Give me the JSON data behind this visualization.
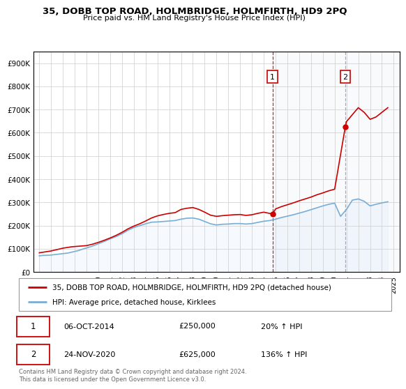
{
  "title": "35, DOBB TOP ROAD, HOLMBRIDGE, HOLMFIRTH, HD9 2PQ",
  "subtitle": "Price paid vs. HM Land Registry's House Price Index (HPI)",
  "hpi_label": "HPI: Average price, detached house, Kirklees",
  "property_label": "35, DOBB TOP ROAD, HOLMBRIDGE, HOLMFIRTH, HD9 2PQ (detached house)",
  "footnote": "Contains HM Land Registry data © Crown copyright and database right 2024.\nThis data is licensed under the Open Government Licence v3.0.",
  "transaction1": {
    "date": "06-OCT-2014",
    "price": "£250,000",
    "hpi_change": "20% ↑ HPI",
    "label": "1"
  },
  "transaction2": {
    "date": "24-NOV-2020",
    "price": "£625,000",
    "hpi_change": "136% ↑ HPI",
    "label": "2"
  },
  "hpi_color": "#7aadd4",
  "hpi_fill_color": "#ddeeff",
  "property_color": "#cc0000",
  "dashed_color": "#cc0000",
  "dashed2_color": "#aaaacc",
  "marker1_x": 2014.75,
  "marker1_y": 250000,
  "marker2_x": 2020.9,
  "marker2_y": 625000,
  "ylim": [
    0,
    950000
  ],
  "xlim": [
    1994.5,
    2025.5
  ],
  "yticks": [
    0,
    100000,
    200000,
    300000,
    400000,
    500000,
    600000,
    700000,
    800000,
    900000
  ],
  "ytick_labels": [
    "£0",
    "£100K",
    "£200K",
    "£300K",
    "£400K",
    "£500K",
    "£600K",
    "£700K",
    "£800K",
    "£900K"
  ],
  "xticks": [
    1995,
    1996,
    1997,
    1998,
    1999,
    2000,
    2001,
    2002,
    2003,
    2004,
    2005,
    2006,
    2007,
    2008,
    2009,
    2010,
    2011,
    2012,
    2013,
    2014,
    2015,
    2016,
    2017,
    2018,
    2019,
    2020,
    2021,
    2022,
    2023,
    2024,
    2025
  ],
  "hpi_years": [
    1995.0,
    1995.083,
    1995.167,
    1995.25,
    1995.333,
    1995.417,
    1995.5,
    1995.583,
    1995.667,
    1995.75,
    1995.833,
    1995.917,
    1996.0,
    1996.083,
    1996.167,
    1996.25,
    1996.333,
    1996.417,
    1996.5,
    1996.583,
    1996.667,
    1996.75,
    1996.833,
    1996.917,
    1997.0,
    1997.083,
    1997.167,
    1997.25,
    1997.333,
    1997.417,
    1997.5,
    1997.583,
    1997.667,
    1997.75,
    1997.833,
    1997.917,
    1998.0,
    1998.083,
    1998.167,
    1998.25,
    1998.333,
    1998.417,
    1998.5,
    1998.583,
    1998.667,
    1998.75,
    1998.833,
    1998.917,
    1999.0,
    1999.5,
    2000.0,
    2000.5,
    2001.0,
    2001.5,
    2002.0,
    2002.5,
    2003.0,
    2003.5,
    2004.0,
    2004.5,
    2005.0,
    2005.5,
    2006.0,
    2006.5,
    2007.0,
    2007.5,
    2008.0,
    2008.5,
    2009.0,
    2009.5,
    2010.0,
    2010.5,
    2011.0,
    2011.5,
    2012.0,
    2012.5,
    2013.0,
    2013.5,
    2014.0,
    2014.5,
    2015.0,
    2015.5,
    2016.0,
    2016.5,
    2017.0,
    2017.5,
    2018.0,
    2018.5,
    2019.0,
    2019.5,
    2020.0,
    2020.5,
    2021.0,
    2021.5,
    2022.0,
    2022.5,
    2023.0,
    2023.5,
    2024.0,
    2024.5
  ],
  "hpi_values": [
    70000,
    70500,
    71000,
    71500,
    71800,
    72000,
    72200,
    72400,
    72500,
    72600,
    72800,
    73000,
    73500,
    74000,
    74500,
    75000,
    75500,
    76000,
    76500,
    77000,
    77500,
    78000,
    78500,
    79000,
    79500,
    80000,
    80500,
    81000,
    81500,
    82000,
    83000,
    84000,
    85000,
    86000,
    87000,
    88000,
    89000,
    90000,
    91000,
    92000,
    93000,
    94500,
    96000,
    97500,
    99000,
    100500,
    101500,
    102500,
    104000,
    112000,
    122000,
    132000,
    143000,
    153000,
    165000,
    180000,
    192000,
    200000,
    208000,
    215000,
    216000,
    218000,
    220000,
    222000,
    228000,
    232000,
    233000,
    228000,
    218000,
    208000,
    203000,
    206000,
    207000,
    209000,
    209000,
    207000,
    209000,
    214000,
    219000,
    222000,
    228000,
    235000,
    241000,
    247000,
    254000,
    261000,
    269000,
    277000,
    285000,
    292000,
    297000,
    240000,
    270000,
    310000,
    315000,
    305000,
    285000,
    292000,
    298000,
    303000
  ],
  "property_years": [
    1995.0,
    1995.25,
    1995.5,
    1995.75,
    1996.0,
    1996.25,
    1996.5,
    1996.75,
    1997.0,
    1997.25,
    1997.5,
    1997.75,
    1998.0,
    1998.25,
    1998.5,
    1998.75,
    1999.0,
    1999.5,
    2000.0,
    2000.5,
    2001.0,
    2001.5,
    2002.0,
    2002.5,
    2003.0,
    2003.5,
    2004.0,
    2004.5,
    2005.0,
    2005.5,
    2006.0,
    2006.5,
    2007.0,
    2007.5,
    2008.0,
    2008.5,
    2009.0,
    2009.5,
    2010.0,
    2010.5,
    2011.0,
    2011.5,
    2012.0,
    2012.5,
    2013.0,
    2013.5,
    2014.0,
    2014.75,
    2015.0,
    2015.5,
    2016.0,
    2016.5,
    2017.0,
    2017.5,
    2018.0,
    2018.5,
    2019.0,
    2019.5,
    2020.0,
    2020.9,
    2021.0,
    2021.5,
    2022.0,
    2022.5,
    2023.0,
    2023.5,
    2024.0,
    2024.5
  ],
  "property_values": [
    83000,
    85000,
    87000,
    89000,
    91000,
    94000,
    97000,
    100000,
    103000,
    105000,
    107000,
    109000,
    110000,
    111000,
    112000,
    113000,
    114000,
    120000,
    128000,
    137000,
    147000,
    158000,
    171000,
    186000,
    198000,
    208000,
    220000,
    233000,
    242000,
    248000,
    253000,
    256000,
    270000,
    275000,
    278000,
    270000,
    258000,
    245000,
    240000,
    243000,
    245000,
    247000,
    248000,
    244000,
    247000,
    253000,
    258000,
    250000,
    272000,
    282000,
    290000,
    298000,
    307000,
    315000,
    323000,
    333000,
    341000,
    350000,
    357000,
    625000,
    648000,
    678000,
    708000,
    688000,
    658000,
    668000,
    688000,
    708000
  ]
}
